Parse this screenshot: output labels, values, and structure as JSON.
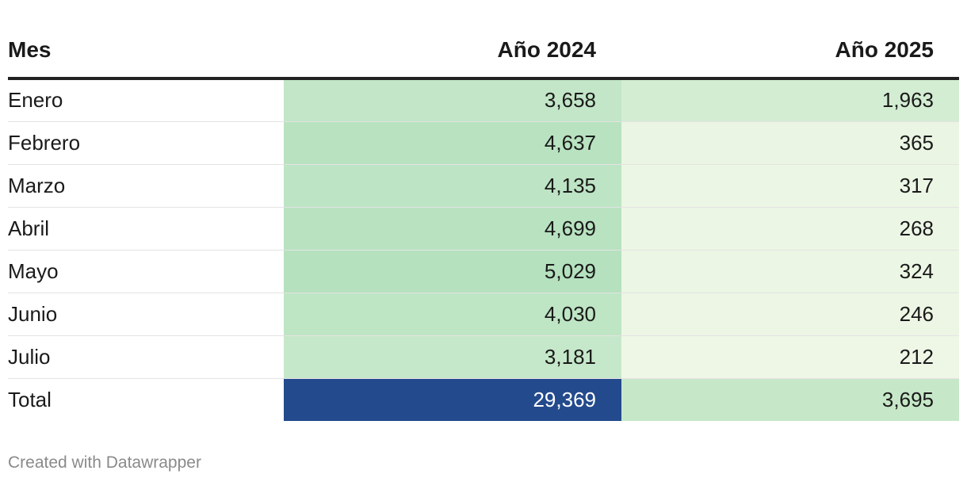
{
  "chart_data": {
    "type": "table",
    "columns": [
      "Mes",
      "Año 2024",
      "Año 2025"
    ],
    "rows": [
      {
        "month": "Enero",
        "y2024": "3,658",
        "y2025": "1,963",
        "v2024": 3658,
        "v2025": 1963
      },
      {
        "month": "Febrero",
        "y2024": "4,637",
        "y2025": "365",
        "v2024": 4637,
        "v2025": 365
      },
      {
        "month": "Marzo",
        "y2024": "4,135",
        "y2025": "317",
        "v2024": 4135,
        "v2025": 317
      },
      {
        "month": "Abril",
        "y2024": "4,699",
        "y2025": "268",
        "v2024": 4699,
        "v2025": 268
      },
      {
        "month": "Mayo",
        "y2024": "5,029",
        "y2025": "324",
        "v2024": 5029,
        "v2025": 324
      },
      {
        "month": "Junio",
        "y2024": "4,030",
        "y2025": "246",
        "v2024": 4030,
        "v2025": 246
      },
      {
        "month": "Julio",
        "y2024": "3,181",
        "y2025": "212",
        "v2024": 3181,
        "v2025": 212
      },
      {
        "month": "Total",
        "y2024": "29,369",
        "y2025": "3,695",
        "v2024": 29369,
        "v2025": 3695
      }
    ],
    "colors": {
      "total_highlight": "#234a8c",
      "cell_light": "#eef7e6",
      "cell_dark": "#b5e1be",
      "header_rule": "#222222"
    }
  },
  "footer": {
    "credit": "Created with Datawrapper"
  }
}
